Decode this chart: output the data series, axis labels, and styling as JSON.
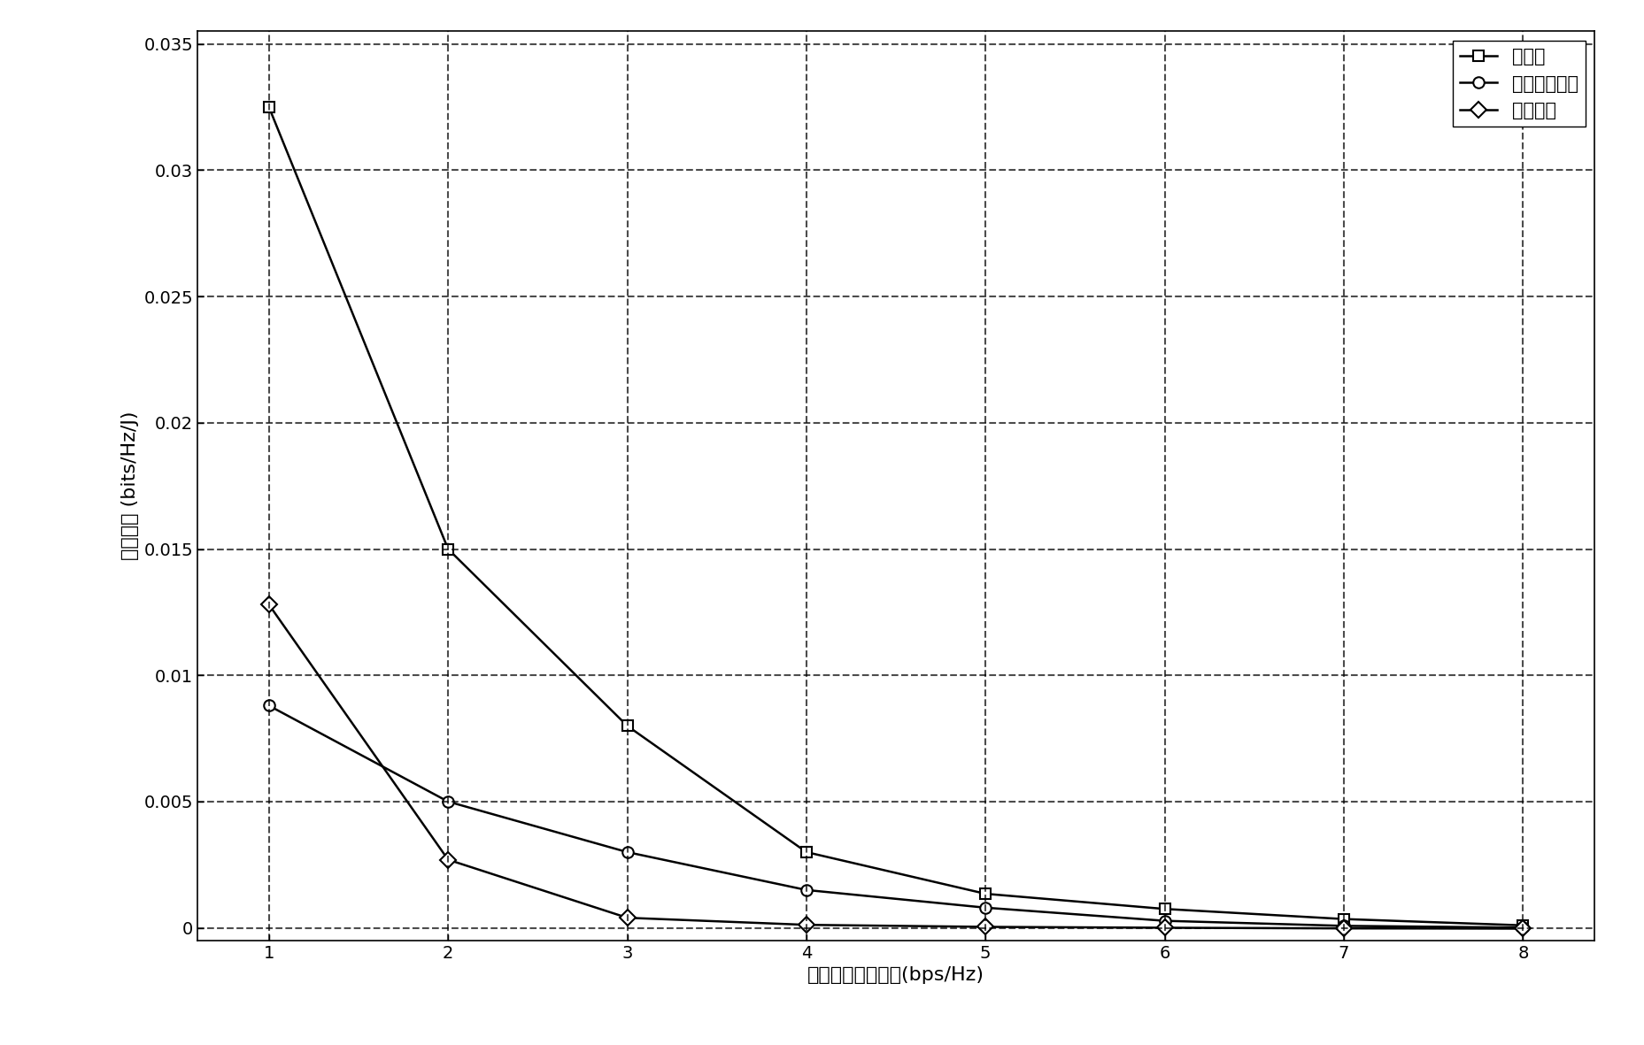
{
  "x": [
    1,
    2,
    3,
    4,
    5,
    6,
    7,
    8
  ],
  "series1_label": "本发明",
  "series1_marker": "s",
  "series1_values": [
    0.0325,
    0.015,
    0.008,
    0.003,
    0.00135,
    0.00075,
    0.00035,
    0.0001
  ],
  "series2_label": "最小化总功率",
  "series2_marker": "o",
  "series2_values": [
    0.0088,
    0.005,
    0.003,
    0.0015,
    0.0008,
    0.00028,
    8e-05,
    1e-05
  ],
  "series3_label": "频分复用",
  "series3_marker": "D",
  "series3_values": [
    0.0128,
    0.0027,
    0.0004,
    0.00012,
    4e-05,
    5e-06,
    -2e-05,
    -3e-05
  ],
  "xlabel": "各用户数据率需求(bps/Hz)",
  "ylabel": "能量效率 (bits/Hz/J)",
  "xlim": [
    0.6,
    8.4
  ],
  "ylim": [
    -0.0005,
    0.0355
  ],
  "yticks": [
    0,
    0.005,
    0.01,
    0.015,
    0.02,
    0.025,
    0.03,
    0.035
  ],
  "xticks": [
    1,
    2,
    3,
    4,
    5,
    6,
    7,
    8
  ],
  "line_color": "#000000",
  "background_color": "#ffffff",
  "grid_color": "#000000",
  "legend_loc": "upper right"
}
